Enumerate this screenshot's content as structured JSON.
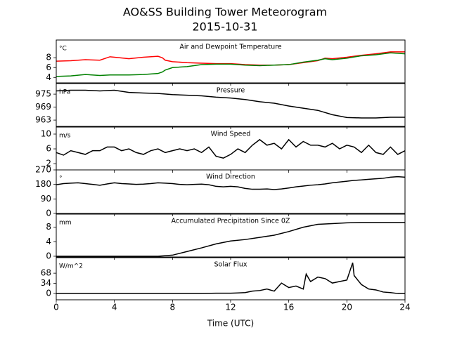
{
  "title": "AO&SS Building Tower Meteorogram",
  "subtitle": "2015-10-31",
  "chart_data": [
    {
      "type": "line",
      "title": "Air and Dewpoint Temperature",
      "unit": "°C",
      "x": [
        0,
        1,
        2,
        3,
        3.7,
        4,
        5,
        6,
        7,
        7.3,
        7.5,
        8,
        9,
        10,
        11,
        12,
        13,
        14,
        15,
        16,
        17,
        18,
        18.5,
        19,
        20,
        21,
        22,
        23,
        24
      ],
      "series": [
        {
          "color": "#ff0000",
          "values": [
            7.3,
            7.4,
            7.6,
            7.5,
            8.2,
            8.1,
            7.8,
            8.1,
            8.3,
            8.0,
            7.5,
            7.2,
            7.0,
            6.9,
            6.8,
            6.8,
            6.6,
            6.5,
            6.5,
            6.6,
            7.0,
            7.4,
            7.9,
            7.8,
            8.1,
            8.5,
            8.8,
            9.2,
            9.2
          ]
        },
        {
          "color": "#008000",
          "values": [
            4.2,
            4.3,
            4.6,
            4.4,
            4.5,
            4.5,
            4.5,
            4.6,
            4.8,
            5.1,
            5.5,
            6.0,
            6.2,
            6.6,
            6.7,
            6.7,
            6.5,
            6.4,
            6.5,
            6.6,
            7.1,
            7.5,
            7.8,
            7.6,
            7.9,
            8.4,
            8.6,
            9.0,
            8.8
          ]
        }
      ],
      "ylim": [
        2.9,
        11.6
      ],
      "yticks": [
        4,
        6,
        8
      ]
    },
    {
      "type": "line",
      "title": "Pressure",
      "unit": "hPa",
      "x": [
        0,
        1,
        2,
        3,
        4,
        5,
        6,
        7,
        8,
        9,
        10,
        11,
        12,
        13,
        14,
        15,
        16,
        17,
        18,
        19,
        20,
        21,
        22,
        23,
        24
      ],
      "series": [
        {
          "color": "#000000",
          "values": [
            976.5,
            976.8,
            976.8,
            976.5,
            976.8,
            975.8,
            975.5,
            975.3,
            974.8,
            974.5,
            974.2,
            973.6,
            973.2,
            972.5,
            971.5,
            970.8,
            969.5,
            968.5,
            967.5,
            965.5,
            964.2,
            964.0,
            964.0,
            964.3,
            964.3
          ]
        }
      ],
      "ylim": [
        960.1,
        979.9
      ],
      "yticks": [
        963,
        969,
        975
      ]
    },
    {
      "type": "line",
      "title": "Wind Speed",
      "unit": "m/s",
      "x": [
        0,
        0.5,
        1,
        1.5,
        2,
        2.5,
        3,
        3.5,
        4,
        4.5,
        5,
        5.5,
        6,
        6.5,
        7,
        7.5,
        8,
        8.5,
        9,
        9.5,
        10,
        10.5,
        11,
        11.5,
        12,
        12.5,
        13,
        13.5,
        14,
        14.5,
        15,
        15.5,
        16,
        16.5,
        17,
        17.5,
        18,
        18.5,
        19,
        19.5,
        20,
        20.5,
        21,
        21.5,
        22,
        22.5,
        23,
        23.5,
        24
      ],
      "series": [
        {
          "color": "#000000",
          "values": [
            5,
            4.3,
            5.5,
            5,
            4.5,
            5.5,
            5.5,
            6.5,
            6.5,
            5.5,
            6,
            5,
            4.5,
            5.5,
            6,
            5,
            5.5,
            6,
            5.5,
            6,
            5,
            6.5,
            4,
            3.5,
            4.5,
            6,
            5,
            7,
            8.5,
            7,
            7.5,
            6,
            8.5,
            6.5,
            8,
            7,
            7,
            6.5,
            7.5,
            6,
            7,
            6.5,
            5,
            7,
            5,
            4.5,
            6.5,
            4.5,
            5.5
          ]
        }
      ],
      "ylim": [
        0.3,
        11.9
      ],
      "yticks": [
        2,
        6,
        10
      ]
    },
    {
      "type": "line",
      "title": "Wind Direction",
      "unit": "°",
      "x": [
        0,
        0.5,
        1,
        1.5,
        2,
        2.5,
        3,
        3.5,
        4,
        4.5,
        5,
        5.5,
        6,
        6.5,
        7,
        7.5,
        8,
        8.5,
        9,
        9.5,
        10,
        10.5,
        11,
        11.5,
        12,
        12.5,
        13,
        13.5,
        14,
        14.5,
        15,
        15.5,
        16,
        16.5,
        17,
        17.5,
        18,
        18.5,
        19,
        19.5,
        20,
        20.5,
        21,
        21.5,
        22,
        22.5,
        23,
        23.5,
        24
      ],
      "series": [
        {
          "color": "#000000",
          "values": [
            178,
            185,
            188,
            190,
            185,
            180,
            175,
            183,
            190,
            185,
            183,
            180,
            182,
            185,
            190,
            188,
            185,
            180,
            178,
            180,
            182,
            178,
            168,
            165,
            168,
            165,
            155,
            150,
            150,
            152,
            148,
            152,
            158,
            165,
            170,
            175,
            178,
            183,
            190,
            195,
            200,
            205,
            208,
            212,
            215,
            218,
            225,
            228,
            225
          ]
        }
      ],
      "ylim": [
        0,
        270
      ],
      "yticks": [
        0,
        90,
        180,
        270
      ]
    },
    {
      "type": "line",
      "title": "Accumulated Precipitation Since 0Z",
      "unit": "mm",
      "x": [
        0,
        1,
        2,
        3,
        4,
        5,
        6,
        7,
        8,
        9,
        10,
        11,
        12,
        13,
        14,
        15,
        16,
        17,
        18,
        19,
        20,
        21,
        22,
        23,
        24
      ],
      "series": [
        {
          "color": "#000000",
          "values": [
            0,
            0,
            0,
            0,
            0,
            0,
            0,
            0,
            0.3,
            1.3,
            2.3,
            3.4,
            4.2,
            4.6,
            5.2,
            5.8,
            6.8,
            8.0,
            8.8,
            9.0,
            9.2,
            9.3,
            9.3,
            9.3,
            9.3
          ]
        }
      ],
      "ylim": [
        -0.2,
        11.6
      ],
      "yticks": [
        0,
        4,
        8
      ]
    },
    {
      "type": "line",
      "title": "Solar Flux",
      "unit": "W/m^2",
      "x": [
        0,
        1,
        2,
        3,
        4,
        5,
        6,
        7,
        8,
        9,
        10,
        11,
        12,
        12.5,
        13,
        13.5,
        14,
        14.5,
        15,
        15.5,
        16,
        16.5,
        17,
        17.2,
        17.5,
        18,
        18.5,
        19,
        19.5,
        20,
        20.4,
        20.5,
        21,
        21.5,
        22,
        22.5,
        23,
        23.5,
        24
      ],
      "series": [
        {
          "color": "#000000",
          "values": [
            0,
            0,
            0,
            0,
            0,
            0,
            0,
            0,
            0,
            0,
            0,
            1,
            1,
            2,
            3,
            8,
            10,
            15,
            8,
            35,
            20,
            25,
            15,
            65,
            40,
            55,
            50,
            35,
            40,
            45,
            103,
            60,
            30,
            15,
            12,
            5,
            3,
            0,
            0
          ]
        }
      ],
      "ylim": [
        -21,
        120
      ],
      "yticks": [
        0,
        34,
        68
      ],
      "xlim": [
        0,
        24
      ],
      "xticks": [
        0,
        4,
        8,
        12,
        16,
        20,
        24
      ],
      "x_label": "Time (UTC)"
    }
  ]
}
